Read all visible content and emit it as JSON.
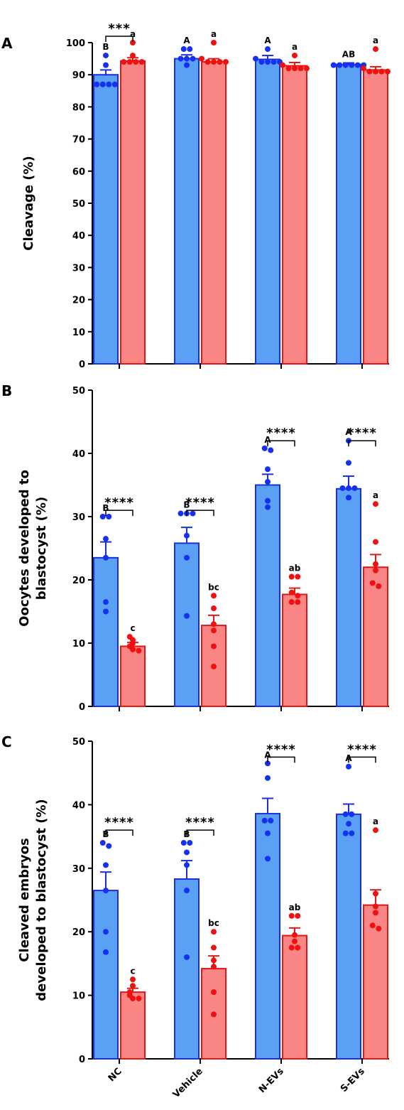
{
  "chart_data": [
    {
      "type": "bar",
      "panel": "A",
      "ylabel": "Cleavage (%)",
      "ylim": [
        0,
        100
      ],
      "yticks": [
        0,
        10,
        20,
        30,
        40,
        50,
        60,
        70,
        80,
        90,
        100
      ],
      "categories": [
        "NC",
        "Vehicle",
        "N-EVs",
        "S-EVs"
      ],
      "colors": {
        "fill1": "#5aa0f5",
        "stroke1": "#1b2fe0",
        "fill2": "#f98585",
        "stroke2": "#e01818",
        "dot1": "#1530f0",
        "dot2": "#f01010"
      },
      "series": [
        {
          "means": [
            90,
            95,
            94.8,
            93.2
          ],
          "sem": [
            1.5,
            1.2,
            1.2,
            0.5
          ],
          "points": [
            [
              96,
              93,
              87,
              87,
              87,
              87
            ],
            [
              98,
              98,
              95,
              95,
              95,
              93
            ],
            [
              98,
              95,
              94,
              94,
              94,
              94
            ],
            [
              93,
              93,
              93,
              93,
              93,
              93
            ]
          ],
          "letters": [
            "B",
            "A",
            "A",
            "AB"
          ]
        },
        {
          "means": [
            94.3,
            94,
            92.8,
            91.5
          ],
          "sem": [
            1,
            1,
            1,
            1
          ],
          "points": [
            [
              100,
              96,
              94,
              94,
              94,
              94
            ],
            [
              100,
              95,
              94,
              94,
              94,
              94
            ],
            [
              96,
              93,
              92,
              92,
              92,
              92
            ],
            [
              98,
              92,
              91,
              91,
              91,
              91
            ]
          ],
          "letters": [
            "a",
            "a",
            "a",
            "a"
          ]
        }
      ],
      "significance": [
        {
          "category": 0,
          "label": "***",
          "y": 102
        }
      ]
    },
    {
      "type": "bar",
      "panel": "B",
      "ylabel": "Oocytes developed to blastocyst (%)",
      "ylabel_lines": [
        "Oocytes developed to",
        "blastocyst (%)"
      ],
      "ylim": [
        0,
        50
      ],
      "yticks": [
        0,
        10,
        20,
        30,
        40,
        50
      ],
      "categories": [
        "NC",
        "Vehicle",
        "N-EVs",
        "S-EVs"
      ],
      "series": [
        {
          "means": [
            23.5,
            25.8,
            35,
            34.4
          ],
          "sem": [
            2.5,
            2.5,
            1.7,
            2
          ],
          "points": [
            [
              30,
              30,
              26.5,
              23.5,
              16.5,
              15
            ],
            [
              30.5,
              30.5,
              30.5,
              27,
              23.5,
              14.3
            ],
            [
              40.8,
              40.5,
              37.5,
              35.5,
              32.5,
              31.5
            ],
            [
              42,
              38.5,
              34.5,
              34.5,
              34.5,
              33
            ]
          ],
          "letters": [
            "B",
            "B",
            "A",
            "A"
          ]
        },
        {
          "means": [
            9.5,
            12.8,
            17.7,
            22
          ],
          "sem": [
            0.6,
            1.6,
            1,
            2
          ],
          "points": [
            [
              11,
              10.5,
              10,
              9.5,
              9,
              8.8
            ],
            [
              17.5,
              15.5,
              13,
              12,
              9.5,
              6.3
            ],
            [
              20.5,
              20.5,
              18,
              17.5,
              16.5,
              16.5
            ],
            [
              32,
              26,
              22.5,
              21.5,
              19.5,
              19
            ]
          ],
          "letters": [
            "c",
            "bc",
            "ab",
            "a"
          ]
        }
      ],
      "significance": [
        {
          "category": 0,
          "label": "****",
          "y": 31
        },
        {
          "category": 1,
          "label": "****",
          "y": 31
        },
        {
          "category": 2,
          "label": "****",
          "y": 42
        },
        {
          "category": 3,
          "label": "****",
          "y": 42
        }
      ]
    },
    {
      "type": "bar",
      "panel": "C",
      "ylabel": "Cleaved embryos developed to blastocyst (%)",
      "ylabel_lines": [
        "Cleaved embryos",
        "developed to blastocyst (%)"
      ],
      "ylim": [
        0,
        50
      ],
      "yticks": [
        0,
        10,
        20,
        30,
        40,
        50
      ],
      "categories": [
        "NC",
        "Vehicle",
        "N-EVs",
        "S-EVs"
      ],
      "series": [
        {
          "means": [
            26.5,
            28.3,
            38.6,
            38.5
          ],
          "sem": [
            2.9,
            2.9,
            2.4,
            1.6
          ],
          "points": [
            [
              34,
              33.5,
              30.5,
              26.5,
              20,
              16.8
            ],
            [
              34,
              34,
              32.5,
              30.5,
              26.5,
              16
            ],
            [
              46.5,
              44.2,
              37.5,
              37.5,
              35.5,
              31.5
            ],
            [
              46,
              38.5,
              38.5,
              37,
              35.5,
              35.5
            ]
          ],
          "letters": [
            "B",
            "B",
            "A",
            "A"
          ]
        },
        {
          "means": [
            10.5,
            14.2,
            19.4,
            24.2
          ],
          "sem": [
            0.6,
            2,
            1.2,
            2.4
          ],
          "points": [
            [
              12.5,
              11.5,
              10.5,
              10,
              9.5,
              9.5
            ],
            [
              20,
              17.5,
              15.5,
              14.5,
              10.5,
              7
            ],
            [
              22.5,
              22.5,
              19.5,
              18.5,
              17.5,
              17.5
            ],
            [
              36,
              26,
              24,
              23,
              21,
              20.5
            ]
          ],
          "letters": [
            "c",
            "bc",
            "ab",
            "a"
          ]
        }
      ],
      "significance": [
        {
          "category": 0,
          "label": "****",
          "y": 36
        },
        {
          "category": 1,
          "label": "****",
          "y": 36
        },
        {
          "category": 2,
          "label": "****",
          "y": 47.5
        },
        {
          "category": 3,
          "label": "****",
          "y": 47.5
        }
      ]
    }
  ]
}
